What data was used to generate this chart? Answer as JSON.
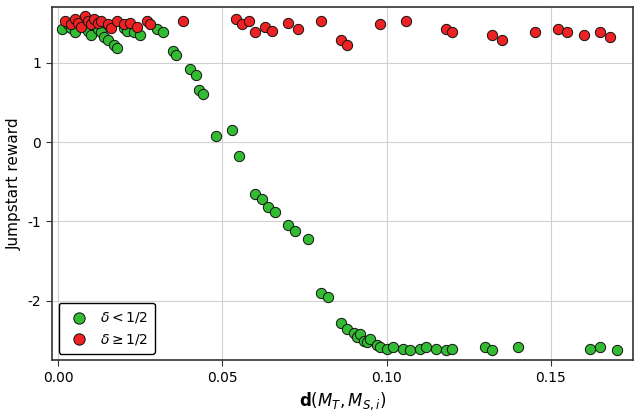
{
  "title": "",
  "xlabel": "$\\mathbf{d}(M_T, M_{S,i})$",
  "ylabel": "Jumpstart reward",
  "xlim": [
    -0.002,
    0.175
  ],
  "ylim": [
    -2.75,
    1.7
  ],
  "xticks": [
    0.0,
    0.05,
    0.1,
    0.15
  ],
  "yticks": [
    -2,
    -1,
    0,
    1
  ],
  "background_color": "#ffffff",
  "grid_color": "#d0d0d0",
  "green_color": "#33bb33",
  "red_color": "#ee2222",
  "edge_color": "#111111",
  "marker_size": 55,
  "green_points": [
    [
      0.001,
      1.42
    ],
    [
      0.003,
      1.48
    ],
    [
      0.004,
      1.44
    ],
    [
      0.005,
      1.38
    ],
    [
      0.006,
      1.52
    ],
    [
      0.007,
      1.5
    ],
    [
      0.008,
      1.45
    ],
    [
      0.009,
      1.4
    ],
    [
      0.01,
      1.35
    ],
    [
      0.011,
      1.48
    ],
    [
      0.012,
      1.42
    ],
    [
      0.013,
      1.38
    ],
    [
      0.014,
      1.32
    ],
    [
      0.015,
      1.28
    ],
    [
      0.017,
      1.22
    ],
    [
      0.018,
      1.18
    ],
    [
      0.02,
      1.44
    ],
    [
      0.021,
      1.4
    ],
    [
      0.023,
      1.38
    ],
    [
      0.025,
      1.35
    ],
    [
      0.03,
      1.42
    ],
    [
      0.032,
      1.38
    ],
    [
      0.035,
      1.15
    ],
    [
      0.036,
      1.1
    ],
    [
      0.04,
      0.92
    ],
    [
      0.042,
      0.84
    ],
    [
      0.043,
      0.65
    ],
    [
      0.044,
      0.6
    ],
    [
      0.048,
      0.08
    ],
    [
      0.053,
      0.15
    ],
    [
      0.055,
      -0.18
    ],
    [
      0.06,
      -0.65
    ],
    [
      0.062,
      -0.72
    ],
    [
      0.064,
      -0.82
    ],
    [
      0.066,
      -0.88
    ],
    [
      0.07,
      -1.05
    ],
    [
      0.072,
      -1.12
    ],
    [
      0.076,
      -1.22
    ],
    [
      0.08,
      -1.9
    ],
    [
      0.082,
      -1.95
    ],
    [
      0.086,
      -2.28
    ],
    [
      0.088,
      -2.35
    ],
    [
      0.09,
      -2.4
    ],
    [
      0.091,
      -2.45
    ],
    [
      0.092,
      -2.42
    ],
    [
      0.093,
      -2.5
    ],
    [
      0.094,
      -2.52
    ],
    [
      0.095,
      -2.48
    ],
    [
      0.097,
      -2.55
    ],
    [
      0.098,
      -2.58
    ],
    [
      0.1,
      -2.6
    ],
    [
      0.102,
      -2.58
    ],
    [
      0.105,
      -2.6
    ],
    [
      0.107,
      -2.62
    ],
    [
      0.11,
      -2.6
    ],
    [
      0.112,
      -2.58
    ],
    [
      0.115,
      -2.6
    ],
    [
      0.118,
      -2.62
    ],
    [
      0.12,
      -2.6
    ],
    [
      0.13,
      -2.58
    ],
    [
      0.132,
      -2.62
    ],
    [
      0.14,
      -2.58
    ],
    [
      0.162,
      -2.6
    ],
    [
      0.165,
      -2.58
    ],
    [
      0.17,
      -2.62
    ]
  ],
  "red_points": [
    [
      0.002,
      1.52
    ],
    [
      0.004,
      1.48
    ],
    [
      0.005,
      1.55
    ],
    [
      0.006,
      1.5
    ],
    [
      0.007,
      1.45
    ],
    [
      0.008,
      1.58
    ],
    [
      0.009,
      1.52
    ],
    [
      0.01,
      1.48
    ],
    [
      0.011,
      1.55
    ],
    [
      0.012,
      1.5
    ],
    [
      0.013,
      1.52
    ],
    [
      0.015,
      1.48
    ],
    [
      0.016,
      1.44
    ],
    [
      0.018,
      1.52
    ],
    [
      0.02,
      1.48
    ],
    [
      0.022,
      1.5
    ],
    [
      0.024,
      1.45
    ],
    [
      0.027,
      1.52
    ],
    [
      0.028,
      1.48
    ],
    [
      0.038,
      1.52
    ],
    [
      0.054,
      1.55
    ],
    [
      0.056,
      1.48
    ],
    [
      0.058,
      1.52
    ],
    [
      0.06,
      1.38
    ],
    [
      0.063,
      1.45
    ],
    [
      0.065,
      1.4
    ],
    [
      0.07,
      1.5
    ],
    [
      0.073,
      1.42
    ],
    [
      0.08,
      1.52
    ],
    [
      0.086,
      1.28
    ],
    [
      0.088,
      1.22
    ],
    [
      0.098,
      1.48
    ],
    [
      0.106,
      1.52
    ],
    [
      0.118,
      1.42
    ],
    [
      0.12,
      1.38
    ],
    [
      0.132,
      1.35
    ],
    [
      0.135,
      1.28
    ],
    [
      0.145,
      1.38
    ],
    [
      0.152,
      1.42
    ],
    [
      0.155,
      1.38
    ],
    [
      0.16,
      1.35
    ],
    [
      0.165,
      1.38
    ],
    [
      0.168,
      1.32
    ]
  ],
  "legend_green_label": "$\\delta < 1/2$",
  "legend_red_label": "$\\delta \\geq 1/2$"
}
